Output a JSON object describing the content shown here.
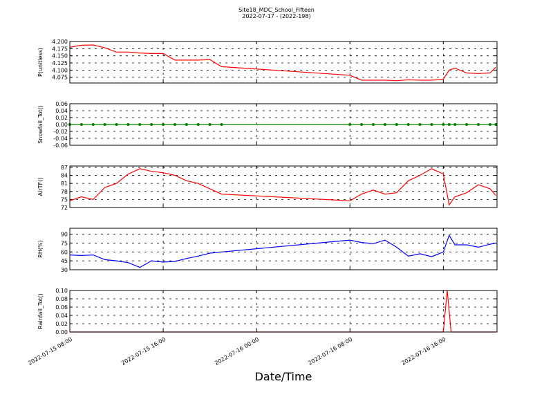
{
  "title": "Site18_MDC_School_Fifteen",
  "subtitle": "2022-07-17 - (2022-198)",
  "chart_data": [
    {
      "type": "line",
      "ylabel": "P(unitless)",
      "x": [
        "2022-07-15 08:00",
        "2022-07-15 09:00",
        "2022-07-15 10:00",
        "2022-07-15 11:00",
        "2022-07-15 12:00",
        "2022-07-15 13:00",
        "2022-07-15 14:00",
        "2022-07-15 15:00",
        "2022-07-15 16:00",
        "2022-07-15 17:00",
        "2022-07-15 18:00",
        "2022-07-15 19:00",
        "2022-07-15 20:00",
        "2022-07-15 21:00",
        "2022-07-16 08:00",
        "2022-07-16 09:00",
        "2022-07-16 10:00",
        "2022-07-16 11:00",
        "2022-07-16 12:00",
        "2022-07-16 13:00",
        "2022-07-16 14:00",
        "2022-07-16 15:00",
        "2022-07-16 16:00",
        "2022-07-16 16:30",
        "2022-07-16 17:00",
        "2022-07-16 18:00",
        "2022-07-16 19:00",
        "2022-07-16 20:00",
        "2022-07-16 20:30"
      ],
      "series": [
        {
          "color": "#ff0000",
          "values": [
            4.18,
            4.187,
            4.188,
            4.178,
            4.163,
            4.163,
            4.16,
            4.158,
            4.158,
            4.135,
            4.135,
            4.135,
            4.137,
            4.112,
            4.082,
            4.065,
            4.065,
            4.065,
            4.063,
            4.066,
            4.065,
            4.065,
            4.068,
            4.1,
            4.107,
            4.09,
            4.088,
            4.09,
            4.11
          ]
        }
      ],
      "xlim": [
        "2022-07-15 08:00",
        "2022-07-16 20:36"
      ],
      "xticks": [
        "2022-07-15 08:00",
        "2022-07-15 16:00",
        "2022-07-16 00:00",
        "2022-07-16 08:00",
        "2022-07-16 16:00"
      ],
      "ylim": [
        4.055,
        4.2
      ],
      "yticks": [
        {
          "value": 4.2,
          "label": "4.200"
        },
        4.175,
        {
          "value": 4.15,
          "label": "4.150"
        },
        4.125,
        {
          "value": 4.1,
          "label": "4.100"
        },
        4.075
      ],
      "grid": true
    },
    {
      "type": "line",
      "ylabel": "Snowfall_Tot()",
      "markers": true,
      "x": [
        "2022-07-15 08:00",
        "2022-07-15 09:00",
        "2022-07-15 10:00",
        "2022-07-15 11:00",
        "2022-07-15 12:00",
        "2022-07-15 13:00",
        "2022-07-15 14:00",
        "2022-07-15 15:00",
        "2022-07-15 16:00",
        "2022-07-15 17:00",
        "2022-07-15 18:00",
        "2022-07-15 19:00",
        "2022-07-15 20:00",
        "2022-07-15 21:00",
        "2022-07-16 08:00",
        "2022-07-16 09:00",
        "2022-07-16 10:00",
        "2022-07-16 11:00",
        "2022-07-16 12:00",
        "2022-07-16 13:00",
        "2022-07-16 14:00",
        "2022-07-16 15:00",
        "2022-07-16 16:00",
        "2022-07-16 16:30",
        "2022-07-16 17:00",
        "2022-07-16 18:00",
        "2022-07-16 19:00",
        "2022-07-16 20:00",
        "2022-07-16 20:30"
      ],
      "series": [
        {
          "color": "#008000",
          "values": [
            0,
            0,
            0,
            0,
            0,
            0,
            0,
            0,
            0,
            0,
            0,
            0,
            0,
            0,
            0,
            0,
            0,
            0,
            0,
            0,
            0,
            0,
            0,
            0,
            0,
            0,
            0,
            0,
            0
          ]
        }
      ],
      "xlim": [
        "2022-07-15 08:00",
        "2022-07-16 20:36"
      ],
      "xticks": [
        "2022-07-15 08:00",
        "2022-07-15 16:00",
        "2022-07-16 00:00",
        "2022-07-16 08:00",
        "2022-07-16 16:00"
      ],
      "ylim": [
        -0.06,
        0.06
      ],
      "yticks": [
        0.06,
        0.04,
        0.02,
        {
          "value": 0,
          "label": "0.00"
        },
        -0.02,
        -0.04,
        -0.06
      ],
      "grid": true
    },
    {
      "type": "line",
      "ylabel": "AirTF()",
      "x": [
        "2022-07-15 08:00",
        "2022-07-15 09:00",
        "2022-07-15 10:00",
        "2022-07-15 11:00",
        "2022-07-15 12:00",
        "2022-07-15 13:00",
        "2022-07-15 14:00",
        "2022-07-15 15:00",
        "2022-07-15 16:00",
        "2022-07-15 17:00",
        "2022-07-15 18:00",
        "2022-07-15 19:00",
        "2022-07-15 20:00",
        "2022-07-15 21:00",
        "2022-07-16 08:00",
        "2022-07-16 09:00",
        "2022-07-16 10:00",
        "2022-07-16 11:00",
        "2022-07-16 12:00",
        "2022-07-16 13:00",
        "2022-07-16 14:00",
        "2022-07-16 15:00",
        "2022-07-16 16:00",
        "2022-07-16 16:30",
        "2022-07-16 17:00",
        "2022-07-16 18:00",
        "2022-07-16 19:00",
        "2022-07-16 20:00",
        "2022-07-16 20:30"
      ],
      "series": [
        {
          "color": "#ff0000",
          "values": [
            74.5,
            76,
            75,
            79.5,
            81,
            84.5,
            86.5,
            85.5,
            85,
            84,
            82,
            81,
            79,
            77,
            74.5,
            77,
            78.5,
            77,
            77.5,
            82,
            84,
            86.5,
            84.5,
            73,
            76,
            77.5,
            80.5,
            79,
            76.5
          ]
        }
      ],
      "xlim": [
        "2022-07-15 08:00",
        "2022-07-16 20:36"
      ],
      "xticks": [
        "2022-07-15 08:00",
        "2022-07-15 16:00",
        "2022-07-16 00:00",
        "2022-07-16 08:00",
        "2022-07-16 16:00"
      ],
      "ylim": [
        72,
        87.5
      ],
      "yticks": [
        87,
        84,
        81,
        78,
        75,
        72
      ],
      "grid": true
    },
    {
      "type": "line",
      "ylabel": "RH(%)",
      "x": [
        "2022-07-15 08:00",
        "2022-07-15 09:00",
        "2022-07-15 10:00",
        "2022-07-15 11:00",
        "2022-07-15 12:00",
        "2022-07-15 13:00",
        "2022-07-15 14:00",
        "2022-07-15 15:00",
        "2022-07-15 16:00",
        "2022-07-15 17:00",
        "2022-07-15 18:00",
        "2022-07-15 19:00",
        "2022-07-15 20:00",
        "2022-07-15 21:00",
        "2022-07-16 08:00",
        "2022-07-16 09:00",
        "2022-07-16 10:00",
        "2022-07-16 11:00",
        "2022-07-16 12:00",
        "2022-07-16 13:00",
        "2022-07-16 14:00",
        "2022-07-16 15:00",
        "2022-07-16 16:00",
        "2022-07-16 16:30",
        "2022-07-16 17:00",
        "2022-07-16 18:00",
        "2022-07-16 19:00",
        "2022-07-16 20:00",
        "2022-07-16 20:30"
      ],
      "series": [
        {
          "color": "#0000ff",
          "values": [
            55,
            54,
            55,
            47,
            45,
            42,
            34,
            45,
            43,
            44,
            49,
            53,
            58,
            60,
            80,
            76,
            74,
            80,
            68,
            53,
            57,
            52,
            60,
            88,
            72,
            72,
            68,
            73,
            75
          ]
        }
      ],
      "xlim": [
        "2022-07-15 08:00",
        "2022-07-16 20:36"
      ],
      "xticks": [
        "2022-07-15 08:00",
        "2022-07-15 16:00",
        "2022-07-16 00:00",
        "2022-07-16 08:00",
        "2022-07-16 16:00"
      ],
      "ylim": [
        30,
        100
      ],
      "yticks": [
        90,
        75,
        60,
        45,
        30
      ],
      "grid": true
    },
    {
      "type": "line",
      "ylabel": "Rainfall_Tot()",
      "xlabel": "Date/Time",
      "x": [
        "2022-07-15 08:00",
        "2022-07-16 16:00",
        "2022-07-16 16:20",
        "2022-07-16 16:40",
        "2022-07-16 20:30"
      ],
      "series": [
        {
          "color": "#ff0000",
          "values": [
            0,
            0,
            0.1,
            0,
            0
          ]
        }
      ],
      "xlim": [
        "2022-07-15 08:00",
        "2022-07-16 20:36"
      ],
      "xticks": [
        "2022-07-15 08:00",
        "2022-07-15 16:00",
        "2022-07-16 00:00",
        "2022-07-16 08:00",
        "2022-07-16 16:00"
      ],
      "ylim": [
        0,
        0.1
      ],
      "yticks": [
        {
          "value": 0.1,
          "label": "0.10"
        },
        0.08,
        0.06,
        0.04,
        0.02,
        {
          "value": 0,
          "label": "0.00"
        }
      ],
      "grid": true
    }
  ]
}
